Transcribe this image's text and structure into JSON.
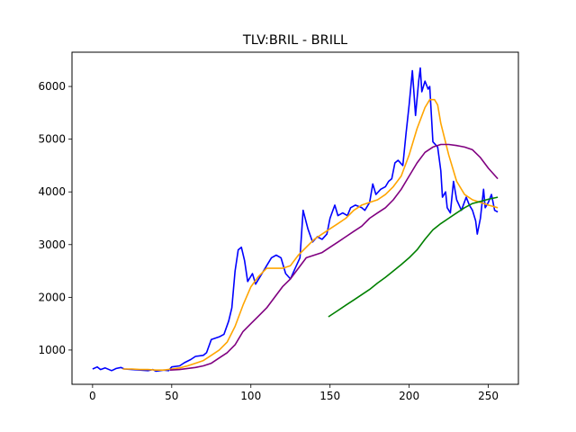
{
  "chart_data": {
    "type": "line",
    "title": "TLV:BRIL - BRILL",
    "xlabel": "",
    "ylabel": "",
    "xlim": [
      -13,
      269
    ],
    "ylim": [
      350,
      6650
    ],
    "xticks": [
      0,
      50,
      100,
      150,
      200,
      250
    ],
    "yticks": [
      1000,
      2000,
      3000,
      4000,
      5000,
      6000
    ],
    "grid": false,
    "legend": "none",
    "series": [
      {
        "color": "#0000ff",
        "points": [
          [
            0,
            640
          ],
          [
            3,
            680
          ],
          [
            5,
            630
          ],
          [
            8,
            660
          ],
          [
            12,
            610
          ],
          [
            15,
            650
          ],
          [
            18,
            670
          ],
          [
            20,
            640
          ],
          [
            25,
            630
          ],
          [
            30,
            620
          ],
          [
            35,
            610
          ],
          [
            38,
            630
          ],
          [
            40,
            600
          ],
          [
            45,
            620
          ],
          [
            48,
            610
          ],
          [
            50,
            680
          ],
          [
            55,
            700
          ],
          [
            58,
            760
          ],
          [
            62,
            820
          ],
          [
            65,
            880
          ],
          [
            70,
            900
          ],
          [
            72,
            950
          ],
          [
            75,
            1200
          ],
          [
            80,
            1250
          ],
          [
            83,
            1300
          ],
          [
            86,
            1550
          ],
          [
            88,
            1800
          ],
          [
            90,
            2500
          ],
          [
            92,
            2900
          ],
          [
            94,
            2950
          ],
          [
            96,
            2700
          ],
          [
            98,
            2300
          ],
          [
            101,
            2450
          ],
          [
            103,
            2250
          ],
          [
            106,
            2400
          ],
          [
            110,
            2600
          ],
          [
            113,
            2750
          ],
          [
            116,
            2800
          ],
          [
            119,
            2750
          ],
          [
            122,
            2450
          ],
          [
            125,
            2350
          ],
          [
            128,
            2550
          ],
          [
            131,
            2750
          ],
          [
            133,
            3650
          ],
          [
            136,
            3300
          ],
          [
            139,
            3050
          ],
          [
            142,
            3150
          ],
          [
            145,
            3100
          ],
          [
            148,
            3200
          ],
          [
            150,
            3500
          ],
          [
            153,
            3750
          ],
          [
            155,
            3550
          ],
          [
            158,
            3600
          ],
          [
            161,
            3550
          ],
          [
            163,
            3700
          ],
          [
            166,
            3750
          ],
          [
            170,
            3700
          ],
          [
            172,
            3650
          ],
          [
            175,
            3800
          ],
          [
            177,
            4150
          ],
          [
            179,
            3950
          ],
          [
            182,
            4050
          ],
          [
            185,
            4100
          ],
          [
            187,
            4200
          ],
          [
            189,
            4250
          ],
          [
            191,
            4550
          ],
          [
            193,
            4600
          ],
          [
            196,
            4500
          ],
          [
            198,
            5100
          ],
          [
            200,
            5650
          ],
          [
            202,
            6300
          ],
          [
            204,
            5450
          ],
          [
            206,
            6100
          ],
          [
            207,
            6350
          ],
          [
            208,
            5900
          ],
          [
            210,
            6100
          ],
          [
            212,
            5950
          ],
          [
            213,
            6000
          ],
          [
            215,
            4950
          ],
          [
            218,
            4850
          ],
          [
            220,
            4400
          ],
          [
            221,
            3900
          ],
          [
            223,
            4000
          ],
          [
            224,
            3700
          ],
          [
            226,
            3600
          ],
          [
            228,
            4200
          ],
          [
            230,
            3850
          ],
          [
            233,
            3650
          ],
          [
            236,
            3900
          ],
          [
            238,
            3750
          ],
          [
            240,
            3650
          ],
          [
            242,
            3450
          ],
          [
            243,
            3200
          ],
          [
            245,
            3500
          ],
          [
            247,
            4050
          ],
          [
            248,
            3700
          ],
          [
            250,
            3800
          ],
          [
            252,
            3950
          ],
          [
            254,
            3650
          ],
          [
            256,
            3620
          ]
        ]
      },
      {
        "color": "#ffa500",
        "points": [
          [
            19,
            640
          ],
          [
            25,
            640
          ],
          [
            30,
            630
          ],
          [
            35,
            630
          ],
          [
            40,
            620
          ],
          [
            45,
            620
          ],
          [
            50,
            640
          ],
          [
            55,
            660
          ],
          [
            60,
            700
          ],
          [
            65,
            750
          ],
          [
            70,
            800
          ],
          [
            75,
            900
          ],
          [
            80,
            1000
          ],
          [
            85,
            1150
          ],
          [
            90,
            1450
          ],
          [
            95,
            1850
          ],
          [
            100,
            2200
          ],
          [
            105,
            2400
          ],
          [
            110,
            2550
          ],
          [
            115,
            2550
          ],
          [
            120,
            2550
          ],
          [
            125,
            2600
          ],
          [
            130,
            2800
          ],
          [
            135,
            2950
          ],
          [
            140,
            3100
          ],
          [
            145,
            3200
          ],
          [
            150,
            3300
          ],
          [
            155,
            3400
          ],
          [
            160,
            3500
          ],
          [
            165,
            3650
          ],
          [
            170,
            3750
          ],
          [
            175,
            3800
          ],
          [
            180,
            3850
          ],
          [
            185,
            3950
          ],
          [
            190,
            4100
          ],
          [
            195,
            4300
          ],
          [
            200,
            4700
          ],
          [
            205,
            5200
          ],
          [
            210,
            5600
          ],
          [
            213,
            5750
          ],
          [
            216,
            5750
          ],
          [
            218,
            5650
          ],
          [
            220,
            5300
          ],
          [
            225,
            4700
          ],
          [
            230,
            4200
          ],
          [
            235,
            3950
          ],
          [
            240,
            3850
          ],
          [
            245,
            3800
          ],
          [
            250,
            3750
          ],
          [
            256,
            3700
          ]
        ]
      },
      {
        "color": "#800080",
        "points": [
          [
            49,
            620
          ],
          [
            55,
            630
          ],
          [
            60,
            650
          ],
          [
            65,
            670
          ],
          [
            70,
            700
          ],
          [
            75,
            750
          ],
          [
            80,
            850
          ],
          [
            85,
            950
          ],
          [
            90,
            1100
          ],
          [
            95,
            1350
          ],
          [
            100,
            1500
          ],
          [
            105,
            1650
          ],
          [
            110,
            1800
          ],
          [
            115,
            2000
          ],
          [
            120,
            2200
          ],
          [
            125,
            2350
          ],
          [
            130,
            2550
          ],
          [
            135,
            2750
          ],
          [
            140,
            2800
          ],
          [
            145,
            2850
          ],
          [
            150,
            2950
          ],
          [
            155,
            3050
          ],
          [
            160,
            3150
          ],
          [
            165,
            3250
          ],
          [
            170,
            3350
          ],
          [
            175,
            3500
          ],
          [
            180,
            3600
          ],
          [
            185,
            3700
          ],
          [
            190,
            3850
          ],
          [
            195,
            4050
          ],
          [
            200,
            4300
          ],
          [
            205,
            4550
          ],
          [
            210,
            4750
          ],
          [
            215,
            4850
          ],
          [
            220,
            4900
          ],
          [
            225,
            4900
          ],
          [
            230,
            4880
          ],
          [
            235,
            4850
          ],
          [
            240,
            4800
          ],
          [
            245,
            4650
          ],
          [
            250,
            4450
          ],
          [
            256,
            4250
          ]
        ]
      },
      {
        "color": "#008000",
        "points": [
          [
            149,
            1630
          ],
          [
            155,
            1750
          ],
          [
            160,
            1850
          ],
          [
            165,
            1950
          ],
          [
            170,
            2050
          ],
          [
            175,
            2150
          ],
          [
            180,
            2270
          ],
          [
            185,
            2380
          ],
          [
            190,
            2500
          ],
          [
            195,
            2620
          ],
          [
            200,
            2750
          ],
          [
            205,
            2900
          ],
          [
            210,
            3100
          ],
          [
            215,
            3280
          ],
          [
            220,
            3400
          ],
          [
            225,
            3500
          ],
          [
            230,
            3600
          ],
          [
            235,
            3700
          ],
          [
            240,
            3780
          ],
          [
            245,
            3820
          ],
          [
            250,
            3860
          ],
          [
            256,
            3900
          ]
        ]
      }
    ]
  }
}
